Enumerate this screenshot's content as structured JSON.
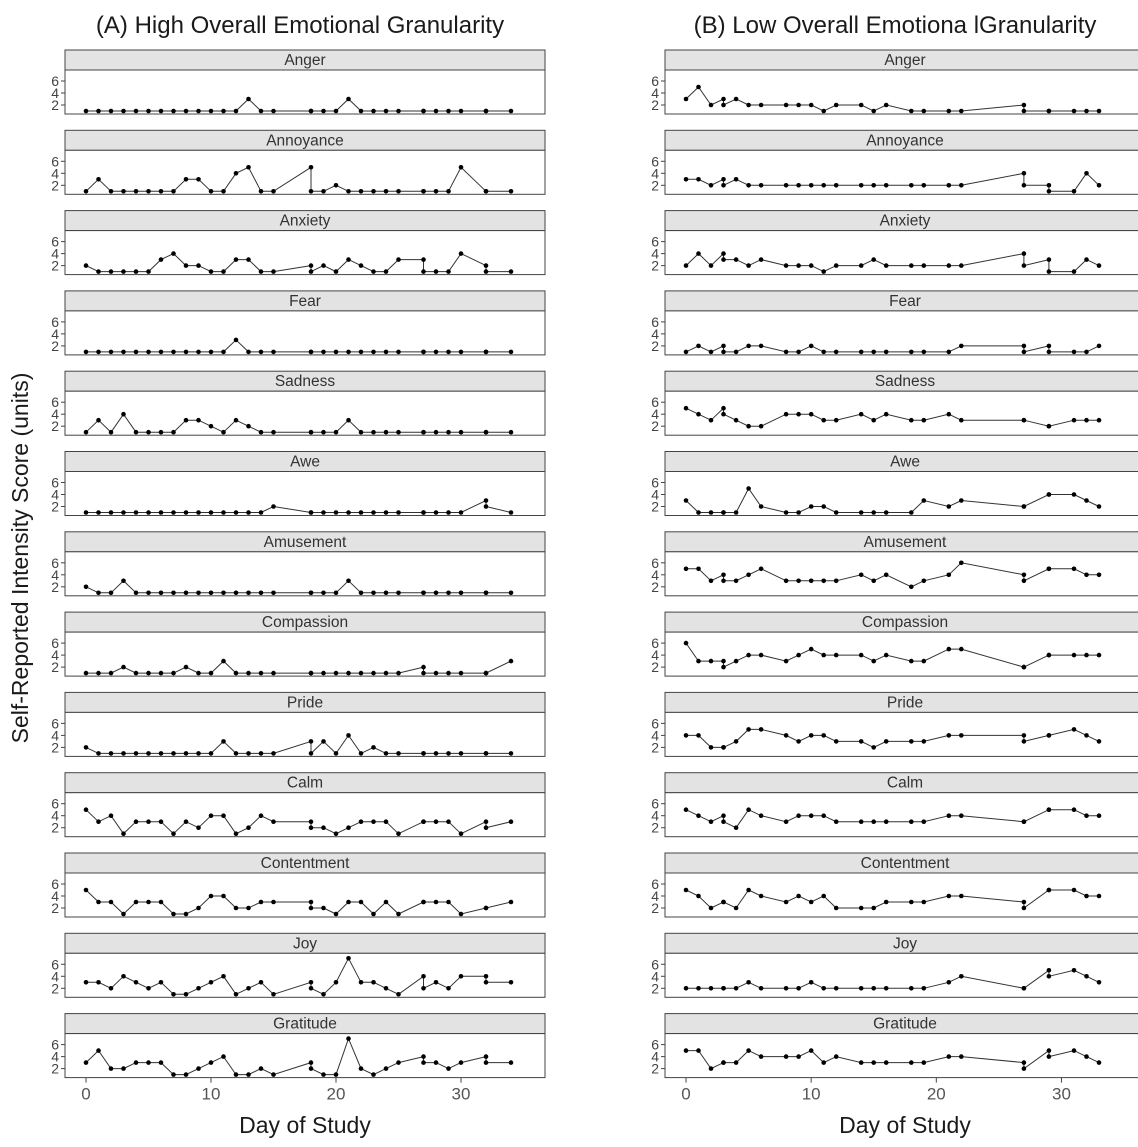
{
  "figure": {
    "ylabel": "Self-Reported Intensity Score (units)",
    "emotions": [
      "Anger",
      "Annoyance",
      "Anxiety",
      "Fear",
      "Sadness",
      "Awe",
      "Amusement",
      "Compassion",
      "Pride",
      "Calm",
      "Contentment",
      "Joy",
      "Gratitude"
    ]
  },
  "chart_data": [
    {
      "type": "line",
      "title": "(A) High Overall Emotional Granularity",
      "xlabel": "Day of Study",
      "ylabel": "Self-Reported Intensity Score (units)",
      "xlim": [
        0,
        34
      ],
      "ylim": [
        1,
        7
      ],
      "x_ticks": [
        0,
        10,
        20,
        30
      ],
      "y_ticks": [
        2,
        4,
        6
      ],
      "grid": false,
      "x": [
        0,
        1,
        2,
        3,
        4,
        5,
        6,
        7,
        8,
        9,
        10,
        11,
        12,
        13,
        14,
        15,
        18,
        18,
        19,
        20,
        21,
        22,
        23,
        24,
        25,
        27,
        27,
        28,
        29,
        30,
        32,
        32,
        34
      ],
      "series": [
        {
          "name": "Anger",
          "values": [
            1,
            1,
            1,
            1,
            1,
            1,
            1,
            1,
            1,
            1,
            1,
            1,
            1,
            3,
            1,
            1,
            1,
            1,
            1,
            1,
            3,
            1,
            1,
            1,
            1,
            1,
            1,
            1,
            1,
            1,
            1,
            1,
            1
          ]
        },
        {
          "name": "Annoyance",
          "values": [
            1,
            3,
            1,
            1,
            1,
            1,
            1,
            1,
            3,
            3,
            1,
            1,
            4,
            5,
            1,
            1,
            5,
            1,
            1,
            2,
            1,
            1,
            1,
            1,
            1,
            1,
            1,
            1,
            1,
            5,
            1,
            1,
            1
          ]
        },
        {
          "name": "Anxiety",
          "values": [
            2,
            1,
            1,
            1,
            1,
            1,
            3,
            4,
            2,
            2,
            1,
            1,
            3,
            3,
            1,
            1,
            2,
            1,
            2,
            1,
            3,
            2,
            1,
            1,
            3,
            3,
            1,
            1,
            1,
            4,
            2,
            1,
            1
          ]
        },
        {
          "name": "Fear",
          "values": [
            1,
            1,
            1,
            1,
            1,
            1,
            1,
            1,
            1,
            1,
            1,
            1,
            3,
            1,
            1,
            1,
            1,
            1,
            1,
            1,
            1,
            1,
            1,
            1,
            1,
            1,
            1,
            1,
            1,
            1,
            1,
            1,
            1
          ]
        },
        {
          "name": "Sadness",
          "values": [
            1,
            3,
            1,
            4,
            1,
            1,
            1,
            1,
            3,
            3,
            2,
            1,
            3,
            2,
            1,
            1,
            1,
            1,
            1,
            1,
            3,
            1,
            1,
            1,
            1,
            1,
            1,
            1,
            1,
            1,
            1,
            1,
            1
          ]
        },
        {
          "name": "Awe",
          "values": [
            1,
            1,
            1,
            1,
            1,
            1,
            1,
            1,
            1,
            1,
            1,
            1,
            1,
            1,
            1,
            2,
            1,
            1,
            1,
            1,
            1,
            1,
            1,
            1,
            1,
            1,
            1,
            1,
            1,
            1,
            3,
            2,
            1
          ]
        },
        {
          "name": "Amusement",
          "values": [
            2,
            1,
            1,
            3,
            1,
            1,
            1,
            1,
            1,
            1,
            1,
            1,
            1,
            1,
            1,
            1,
            1,
            1,
            1,
            1,
            3,
            1,
            1,
            1,
            1,
            1,
            1,
            1,
            1,
            1,
            1,
            1,
            1
          ]
        },
        {
          "name": "Compassion",
          "values": [
            1,
            1,
            1,
            2,
            1,
            1,
            1,
            1,
            2,
            1,
            1,
            3,
            1,
            1,
            1,
            1,
            1,
            1,
            1,
            1,
            1,
            1,
            1,
            1,
            1,
            2,
            1,
            1,
            1,
            1,
            1,
            1,
            3
          ]
        },
        {
          "name": "Pride",
          "values": [
            2,
            1,
            1,
            1,
            1,
            1,
            1,
            1,
            1,
            1,
            1,
            3,
            1,
            1,
            1,
            1,
            3,
            1,
            3,
            1,
            4,
            1,
            2,
            1,
            1,
            1,
            1,
            1,
            1,
            1,
            1,
            1,
            1
          ]
        },
        {
          "name": "Calm",
          "values": [
            5,
            3,
            4,
            1,
            3,
            3,
            3,
            1,
            3,
            2,
            4,
            4,
            1,
            2,
            4,
            3,
            3,
            2,
            2,
            1,
            2,
            3,
            3,
            3,
            1,
            3,
            3,
            3,
            3,
            1,
            3,
            2,
            3
          ]
        },
        {
          "name": "Contentment",
          "values": [
            5,
            3,
            3,
            1,
            3,
            3,
            3,
            1,
            1,
            2,
            4,
            4,
            2,
            2,
            3,
            3,
            3,
            2,
            2,
            1,
            3,
            3,
            1,
            3,
            1,
            3,
            3,
            3,
            3,
            1,
            2,
            2,
            3
          ]
        },
        {
          "name": "Joy",
          "values": [
            3,
            3,
            2,
            4,
            3,
            2,
            3,
            1,
            1,
            2,
            3,
            4,
            1,
            2,
            3,
            1,
            3,
            2,
            1,
            3,
            7,
            3,
            3,
            2,
            1,
            4,
            2,
            3,
            2,
            4,
            4,
            3,
            3
          ]
        },
        {
          "name": "Gratitude",
          "values": [
            3,
            5,
            2,
            2,
            3,
            3,
            3,
            1,
            1,
            2,
            3,
            4,
            1,
            1,
            2,
            1,
            3,
            2,
            1,
            1,
            7,
            2,
            1,
            2,
            3,
            4,
            3,
            3,
            2,
            3,
            4,
            3,
            3
          ]
        }
      ]
    },
    {
      "type": "line",
      "title": "(B) Low Overall Emotiona lGranularity",
      "xlabel": "Day of Study",
      "ylabel": "Self-Reported Intensity Score (units)",
      "xlim": [
        0,
        33
      ],
      "ylim": [
        1,
        7
      ],
      "x_ticks": [
        0,
        10,
        20,
        30
      ],
      "y_ticks": [
        2,
        4,
        6
      ],
      "grid": false,
      "x": [
        0,
        1,
        2,
        3,
        3,
        4,
        5,
        6,
        8,
        9,
        10,
        11,
        12,
        14,
        15,
        16,
        18,
        19,
        21,
        22,
        27,
        27,
        29,
        29,
        31,
        32,
        33
      ],
      "series": [
        {
          "name": "Anger",
          "values": [
            3,
            5,
            2,
            3,
            2,
            3,
            2,
            2,
            2,
            2,
            2,
            1,
            2,
            2,
            1,
            2,
            1,
            1,
            1,
            1,
            2,
            1,
            1,
            1,
            1,
            1,
            1
          ]
        },
        {
          "name": "Annoyance",
          "values": [
            3,
            3,
            2,
            3,
            2,
            3,
            2,
            2,
            2,
            2,
            2,
            2,
            2,
            2,
            2,
            2,
            2,
            2,
            2,
            2,
            4,
            2,
            2,
            1,
            1,
            4,
            2
          ]
        },
        {
          "name": "Anxiety",
          "values": [
            2,
            4,
            2,
            4,
            3,
            3,
            2,
            3,
            2,
            2,
            2,
            1,
            2,
            2,
            3,
            2,
            2,
            2,
            2,
            2,
            4,
            2,
            3,
            1,
            1,
            3,
            2
          ]
        },
        {
          "name": "Fear",
          "values": [
            1,
            2,
            1,
            2,
            1,
            1,
            2,
            2,
            1,
            1,
            2,
            1,
            1,
            1,
            1,
            1,
            1,
            1,
            1,
            2,
            2,
            1,
            2,
            1,
            1,
            1,
            2
          ]
        },
        {
          "name": "Sadness",
          "values": [
            5,
            4,
            3,
            5,
            4,
            3,
            2,
            2,
            4,
            4,
            4,
            3,
            3,
            4,
            3,
            4,
            3,
            3,
            4,
            3,
            3,
            3,
            2,
            2,
            3,
            3,
            3
          ]
        },
        {
          "name": "Awe",
          "values": [
            3,
            1,
            1,
            1,
            1,
            1,
            5,
            2,
            1,
            1,
            2,
            2,
            1,
            1,
            1,
            1,
            1,
            3,
            2,
            3,
            2,
            2,
            4,
            4,
            4,
            3,
            2
          ]
        },
        {
          "name": "Amusement",
          "values": [
            5,
            5,
            3,
            4,
            3,
            3,
            4,
            5,
            3,
            3,
            3,
            3,
            3,
            4,
            3,
            4,
            2,
            3,
            4,
            6,
            4,
            3,
            5,
            5,
            5,
            4,
            4
          ]
        },
        {
          "name": "Compassion",
          "values": [
            6,
            3,
            3,
            3,
            2,
            3,
            4,
            4,
            3,
            4,
            5,
            4,
            4,
            4,
            3,
            4,
            3,
            3,
            5,
            5,
            2,
            2,
            4,
            4,
            4,
            4,
            4
          ]
        },
        {
          "name": "Pride",
          "values": [
            4,
            4,
            2,
            2,
            2,
            3,
            5,
            5,
            4,
            3,
            4,
            4,
            3,
            3,
            2,
            3,
            3,
            3,
            4,
            4,
            4,
            3,
            4,
            4,
            5,
            4,
            3
          ]
        },
        {
          "name": "Calm",
          "values": [
            5,
            4,
            3,
            4,
            3,
            2,
            5,
            4,
            3,
            4,
            4,
            4,
            3,
            3,
            3,
            3,
            3,
            3,
            4,
            4,
            3,
            3,
            5,
            5,
            5,
            4,
            4
          ]
        },
        {
          "name": "Contentment",
          "values": [
            5,
            4,
            2,
            3,
            3,
            2,
            5,
            4,
            3,
            4,
            3,
            4,
            2,
            2,
            2,
            3,
            3,
            3,
            4,
            4,
            3,
            2,
            5,
            5,
            5,
            4,
            4
          ]
        },
        {
          "name": "Joy",
          "values": [
            2,
            2,
            2,
            2,
            2,
            2,
            3,
            2,
            2,
            2,
            3,
            2,
            2,
            2,
            2,
            2,
            2,
            2,
            3,
            4,
            2,
            2,
            5,
            4,
            5,
            4,
            3
          ]
        },
        {
          "name": "Gratitude",
          "values": [
            5,
            5,
            2,
            3,
            3,
            3,
            5,
            4,
            4,
            4,
            5,
            3,
            4,
            3,
            3,
            3,
            3,
            3,
            4,
            4,
            3,
            2,
            5,
            4,
            5,
            4,
            3
          ]
        }
      ]
    }
  ]
}
